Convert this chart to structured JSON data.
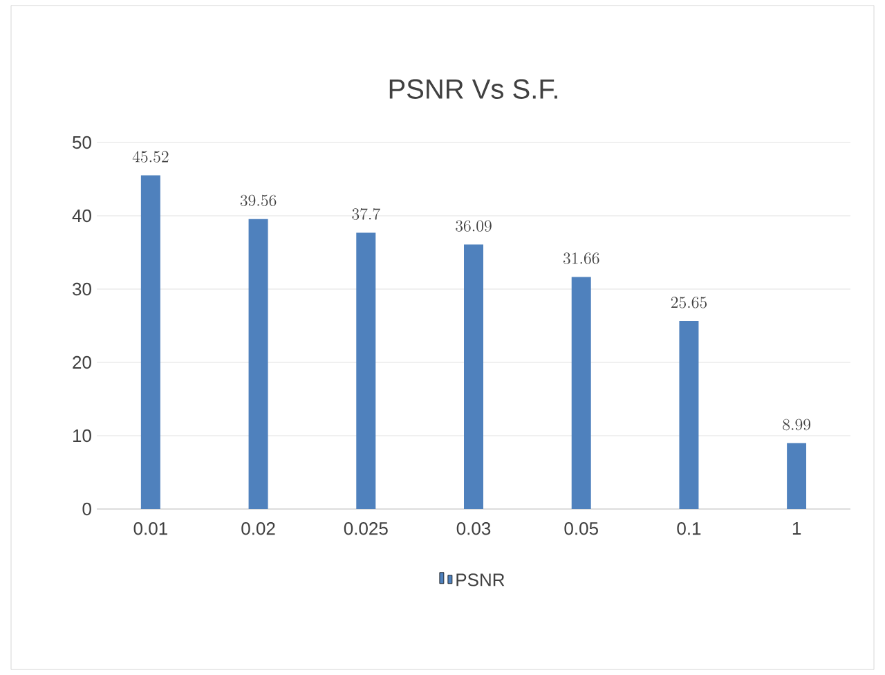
{
  "chart_data": {
    "type": "bar",
    "title": "PSNR Vs S.F.",
    "categories": [
      "0.01",
      "0.02",
      "0.025",
      "0.03",
      "0.05",
      "0.1",
      "1"
    ],
    "series": [
      {
        "name": "PSNR",
        "color": "#4f81bd",
        "values": [
          45.52,
          39.56,
          37.7,
          36.09,
          31.66,
          25.65,
          8.99
        ]
      }
    ],
    "ylim": [
      0,
      50
    ],
    "yticks": [
      0,
      10,
      20,
      30,
      40,
      50
    ],
    "grid": "y",
    "legend": "bottom",
    "data_labels": true
  }
}
